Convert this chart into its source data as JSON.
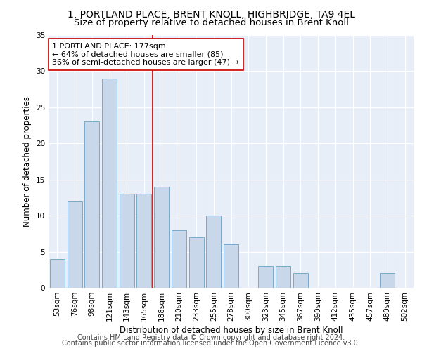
{
  "title": "1, PORTLAND PLACE, BRENT KNOLL, HIGHBRIDGE, TA9 4EL",
  "subtitle": "Size of property relative to detached houses in Brent Knoll",
  "xlabel": "Distribution of detached houses by size in Brent Knoll",
  "ylabel": "Number of detached properties",
  "categories": [
    "53sqm",
    "76sqm",
    "98sqm",
    "121sqm",
    "143sqm",
    "165sqm",
    "188sqm",
    "210sqm",
    "233sqm",
    "255sqm",
    "278sqm",
    "300sqm",
    "323sqm",
    "345sqm",
    "367sqm",
    "390sqm",
    "412sqm",
    "435sqm",
    "457sqm",
    "480sqm",
    "502sqm"
  ],
  "values": [
    4,
    12,
    23,
    29,
    13,
    13,
    14,
    8,
    7,
    10,
    6,
    0,
    3,
    3,
    2,
    0,
    0,
    0,
    0,
    2,
    0
  ],
  "bar_color": "#c8d8ea",
  "bar_edge_color": "#7aaac8",
  "marker_line_color": "#cc0000",
  "annotation_line1": "1 PORTLAND PLACE: 177sqm",
  "annotation_line2": "← 64% of detached houses are smaller (85)",
  "annotation_line3": "36% of semi-detached houses are larger (47) →",
  "annotation_box_color": "#ffffff",
  "annotation_box_edge_color": "#cc0000",
  "ylim": [
    0,
    35
  ],
  "yticks": [
    0,
    5,
    10,
    15,
    20,
    25,
    30,
    35
  ],
  "bg_color": "#e8eef8",
  "grid_color": "#ffffff",
  "footer1": "Contains HM Land Registry data © Crown copyright and database right 2024.",
  "footer2": "Contains public sector information licensed under the Open Government Licence v3.0.",
  "title_fontsize": 10,
  "subtitle_fontsize": 9.5,
  "xlabel_fontsize": 8.5,
  "ylabel_fontsize": 8.5,
  "tick_fontsize": 7.5,
  "annotation_fontsize": 8,
  "footer_fontsize": 7
}
